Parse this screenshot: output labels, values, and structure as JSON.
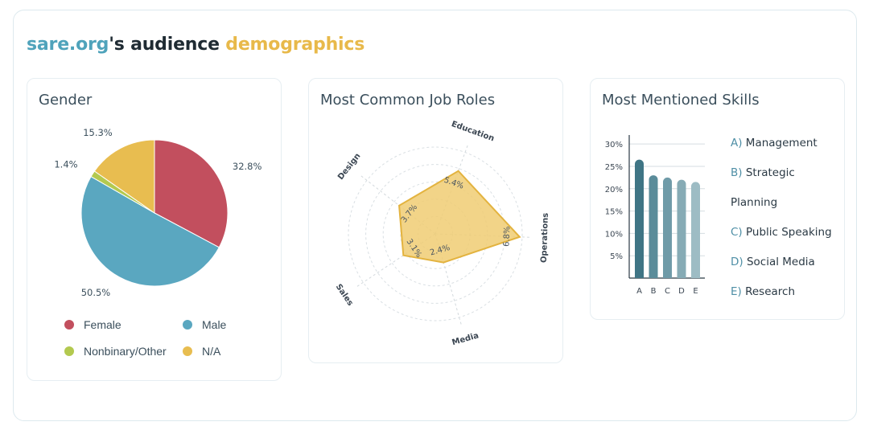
{
  "header": {
    "title_site": "sare.org",
    "title_middle": "'s audience ",
    "title_accent": "demographics"
  },
  "colors": {
    "site": "#4fa3bb",
    "accent": "#e8b94a",
    "female": "#c24f5e",
    "male": "#5aa7c0",
    "nonbinary": "#b3c94f",
    "na": "#e8bd50",
    "radar_fill": "#f0cd73",
    "radar_stroke": "#e3b33f"
  },
  "chart_data": [
    {
      "type": "pie",
      "title": "Gender",
      "series": [
        {
          "name": "Female",
          "value": 32.8,
          "label": "32.8%",
          "color": "#c24f5e"
        },
        {
          "name": "Male",
          "value": 50.5,
          "label": "50.5%",
          "color": "#5aa7c0"
        },
        {
          "name": "Nonbinary/Other",
          "value": 1.4,
          "label": "1.4%",
          "color": "#b3c94f"
        },
        {
          "name": "N/A",
          "value": 15.3,
          "label": "15.3%",
          "color": "#e8bd50"
        }
      ],
      "legend_placement": "bottom"
    },
    {
      "type": "radar",
      "title": "Most Common Job Roles",
      "axes": [
        {
          "name": "Education",
          "value": 5.4,
          "label": "5.4%"
        },
        {
          "name": "Operations",
          "value": 6.8,
          "label": "6.8%"
        },
        {
          "name": "Media",
          "value": 2.4,
          "label": "2.4%"
        },
        {
          "name": "Sales",
          "value": 3.1,
          "label": "3.1%"
        },
        {
          "name": "Design",
          "value": 3.7,
          "label": "3.7%"
        }
      ],
      "rmax": 7
    },
    {
      "type": "bar",
      "title": "Most Mentioned Skills",
      "categories": [
        "A",
        "B",
        "C",
        "D",
        "E"
      ],
      "values": [
        26.5,
        23,
        22.5,
        22,
        21.5
      ],
      "ylim": [
        0,
        32
      ],
      "yticks": [
        5,
        10,
        15,
        20,
        25,
        30
      ],
      "ytick_labels": [
        "5%",
        "10%",
        "15%",
        "20%",
        "25%",
        "30%"
      ],
      "bar_colors": [
        "#3f7585",
        "#5a8c9a",
        "#6f9ba8",
        "#86abb5",
        "#9dbcc4"
      ],
      "grid": true,
      "legend": [
        {
          "letter": "A)",
          "name": "Management"
        },
        {
          "letter": "B)",
          "name": "Strategic"
        },
        {
          "letter": "",
          "name": "Planning"
        },
        {
          "letter": "C)",
          "name": "Public Speaking"
        },
        {
          "letter": "D)",
          "name": "Social Media"
        },
        {
          "letter": "E)",
          "name": "Research"
        }
      ]
    }
  ]
}
